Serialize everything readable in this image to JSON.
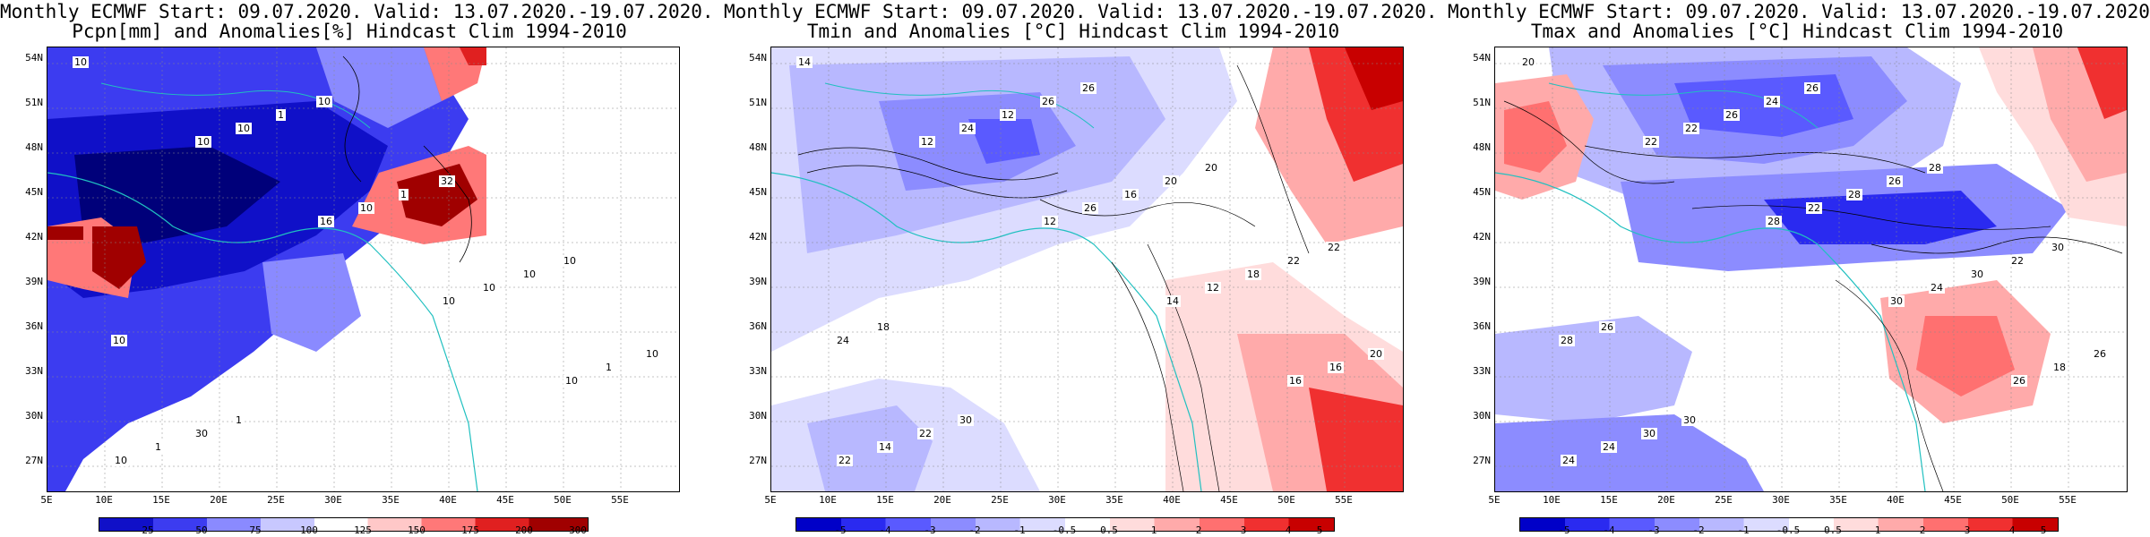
{
  "panels": [
    {
      "title_line1": "Monthly ECMWF Start: 09.07.2020. Valid: 13.07.2020.-19.07.2020.",
      "title_line2": "Pcpn[mm] and Anomalies[%] Hindcast Clim 1994-2010",
      "colorbar": [
        "25",
        "50",
        "75",
        "100",
        "125",
        "150",
        "175",
        "200",
        "300"
      ],
      "contour_labels": [
        "10",
        "10",
        "16",
        "10",
        "10",
        "10",
        "10",
        "10",
        "10",
        "1",
        "1",
        "1",
        "1",
        "10",
        "10",
        "30",
        "10",
        "32",
        "10",
        "10",
        "1"
      ]
    },
    {
      "title_line1": "Monthly ECMWF Start: 09.07.2020. Valid: 13.07.2020.-19.07.2020.",
      "title_line2": "Tmin and Anomalies [°C] Hindcast Clim 1994-2010",
      "colorbar": [
        "-5",
        "-4",
        "-3",
        "-2",
        "-1",
        "-0.5",
        "0.5",
        "1",
        "2",
        "3",
        "4",
        "5"
      ],
      "contour_labels": [
        "14",
        "12",
        "12",
        "14",
        "16",
        "22",
        "24",
        "26",
        "12",
        "16",
        "14",
        "12",
        "16",
        "18",
        "20",
        "22",
        "26",
        "20",
        "22",
        "24",
        "30",
        "26",
        "20",
        "22",
        "18"
      ]
    },
    {
      "title_line1": "Monthly ECMWF Start: 09.07.2020. Valid: 13.07.2020.-19.07.2020.",
      "title_line2": "Tmax and Anomalies [°C] Hindcast Clim 1994-2010",
      "colorbar": [
        "-5",
        "-4",
        "-3",
        "-2",
        "-1",
        "-0.5",
        "0.5",
        "1",
        "2",
        "3",
        "4",
        "5"
      ],
      "contour_labels": [
        "20",
        "22",
        "28",
        "30",
        "26",
        "24",
        "22",
        "22",
        "24",
        "18",
        "24",
        "26",
        "28",
        "30",
        "26",
        "30",
        "24",
        "26",
        "22",
        "28",
        "30",
        "26",
        "28",
        "30",
        "26"
      ]
    }
  ],
  "y_axis": [
    "54N",
    "51N",
    "48N",
    "45N",
    "42N",
    "39N",
    "36N",
    "33N",
    "30N",
    "27N"
  ],
  "x_axis": [
    "5E",
    "10E",
    "15E",
    "20E",
    "25E",
    "30E",
    "35E",
    "40E",
    "45E",
    "50E",
    "55E"
  ],
  "colors": {
    "precip_scale": [
      "#1010c8",
      "#3c3cf0",
      "#8a8aff",
      "#c8c8ff",
      "#ffffff",
      "#ffc8c8",
      "#ff7878",
      "#e02020",
      "#a00000"
    ],
    "temp_scale": [
      "#0000c8",
      "#2a2af0",
      "#5a5aff",
      "#8c8cff",
      "#b8b8ff",
      "#dcdcff",
      "#ffffff",
      "#ffdcdc",
      "#ffaaaa",
      "#ff7070",
      "#f03030",
      "#c80000"
    ],
    "coast": "#20c0c0"
  }
}
